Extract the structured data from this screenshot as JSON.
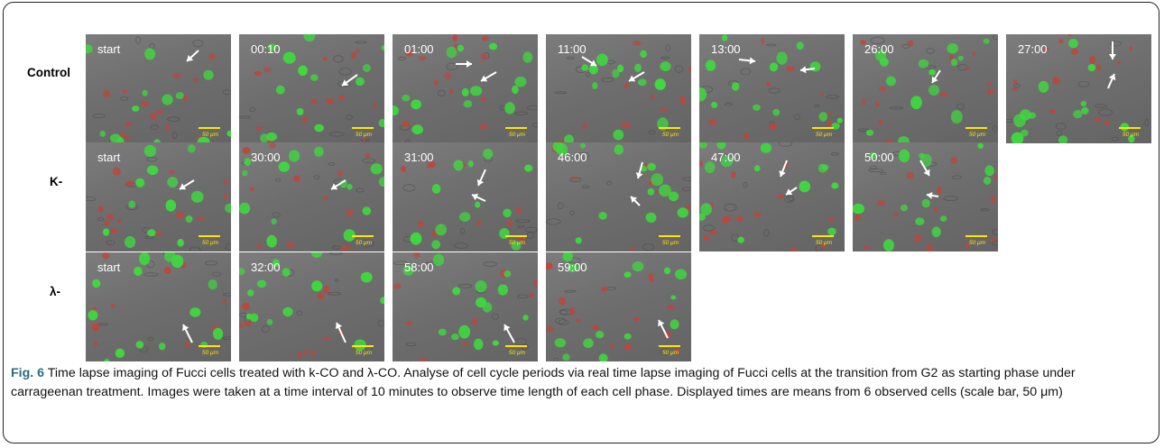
{
  "rows": [
    {
      "label": "Control",
      "panels": [
        {
          "time": "start",
          "scale": "50 μm"
        },
        {
          "time": "00:10",
          "scale": "50 μm"
        },
        {
          "time": "01:00",
          "scale": "50 μm"
        },
        {
          "time": "11:00",
          "scale": "50 μm"
        },
        {
          "time": "13:00",
          "scale": "50 μm"
        },
        {
          "time": "26:00",
          "scale": "50 μm"
        },
        {
          "time": "27:00",
          "scale": "50 μm"
        }
      ]
    },
    {
      "label": "K-",
      "panels": [
        {
          "time": "start",
          "scale": "50 μm"
        },
        {
          "time": "30:00",
          "scale": "50 μm"
        },
        {
          "time": "31:00",
          "scale": "50 μm"
        },
        {
          "time": "46:00",
          "scale": "50 μm"
        },
        {
          "time": "47:00",
          "scale": "50 μm"
        },
        {
          "time": "50:00",
          "scale": "50 μm"
        }
      ]
    },
    {
      "label": "λ-",
      "panels": [
        {
          "time": "start",
          "scale": "50 μm"
        },
        {
          "time": "32:00",
          "scale": "50 μm"
        },
        {
          "time": "58:00",
          "scale": "50 μm"
        },
        {
          "time": "59:00",
          "scale": "50 μm"
        }
      ]
    }
  ],
  "caption": {
    "figure_number": "Fig. 6",
    "text": "Time lapse imaging of Fucci cells treated with k-CO and λ-CO. Analyse of cell cycle periods via real time lapse imaging of Fucci cells at the transition from G2 as starting phase under carrageenan treatment. Images were taken at a time interval of 10 minutes to observe time length of each cell phase. Displayed times are means from 6 observed cells (scale bar, 50 μm)"
  },
  "colors": {
    "g2_cell_green": "#3fd83f",
    "g1_cell_red": "#c0443a",
    "scale_bar_yellow": "#ffe600",
    "figure_number_blue": "#2a6a86"
  }
}
